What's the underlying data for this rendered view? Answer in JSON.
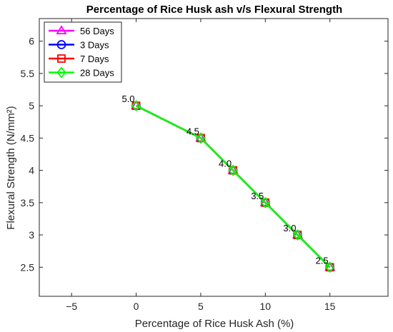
{
  "chart_data": {
    "type": "line",
    "title": "Percentage of Rice Husk ash v/s Flexural Strength",
    "xlabel": "Percentage of Rice Husk Ash (%)",
    "ylabel": "Flexural Strength (N/mm²)",
    "xlim": [
      -7.5,
      19.5
    ],
    "ylim": [
      2.05,
      6.35
    ],
    "xticks": [
      -5,
      0,
      5,
      10,
      15
    ],
    "xtick_labels": [
      "−5",
      "0",
      "5",
      "10",
      "15"
    ],
    "yticks": [
      2.5,
      3,
      3.5,
      4,
      4.5,
      5,
      5.5,
      6
    ],
    "ytick_labels": [
      "2.5",
      "3",
      "3.5",
      "4",
      "4.5",
      "5",
      "5.5",
      "6"
    ],
    "grid": false,
    "legend_position": "top-left",
    "x": [
      0,
      5,
      7.5,
      10,
      12.5,
      15
    ],
    "series": [
      {
        "name": "56 Days",
        "marker": "triangle",
        "color": "#ff00ff",
        "values": [
          5.0,
          4.5,
          4.0,
          3.5,
          3.0,
          2.5
        ]
      },
      {
        "name": "3 Days",
        "marker": "circle",
        "color": "#0000ff",
        "values": [
          5.0,
          4.5,
          4.0,
          3.5,
          3.0,
          2.5
        ]
      },
      {
        "name": "7 Days",
        "marker": "square",
        "color": "#ff0000",
        "values": [
          5.0,
          4.5,
          4.0,
          3.5,
          3.0,
          2.5
        ]
      },
      {
        "name": "28 Days",
        "marker": "diamond",
        "color": "#00ff00",
        "values": [
          5.0,
          4.5,
          4.0,
          3.5,
          3.0,
          2.5
        ]
      }
    ],
    "data_labels": [
      "5.0",
      "4.5",
      "4.0",
      "3.5",
      "3.0",
      "2.5"
    ]
  }
}
